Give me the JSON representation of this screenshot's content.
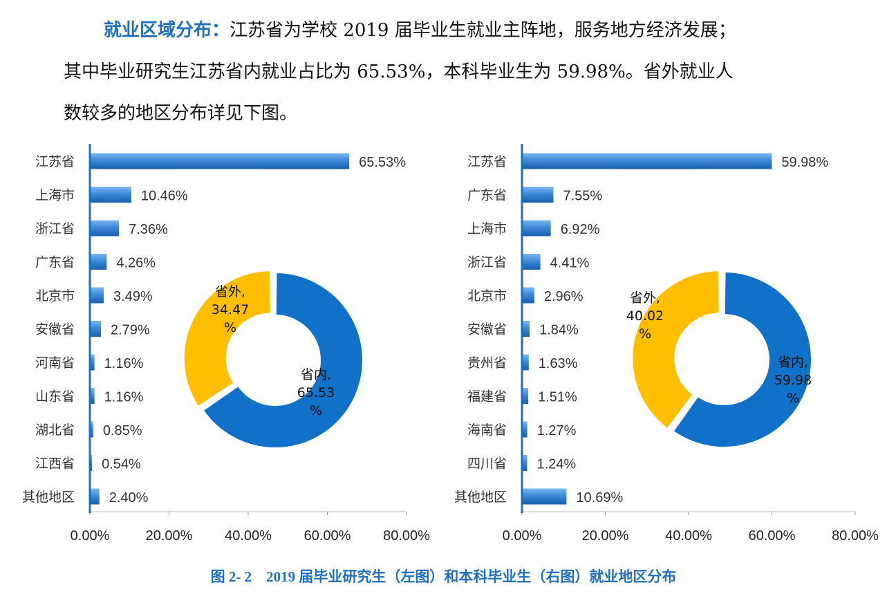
{
  "paragraph": {
    "highlight": "就业区域分布：",
    "line1": "江苏省为学校 2019 届毕业生就业主阵地，服务地方经济发展；",
    "line2": "其中毕业研究生江苏省内就业占比为 65.53%，本科毕业生为 59.98%。省外就业人",
    "line3": "数较多的地区分布详见下图。"
  },
  "caption": "图 2- 2　2019 届毕业研究生（左图）和本科毕业生（右图）就业地区分布",
  "colors": {
    "bar": "#2f7fd0",
    "axis": "#1f6fc0",
    "donut_in": "#1170c8",
    "donut_out": "#ffbf00",
    "caption": "#1f6fc0"
  },
  "chart_data": [
    {
      "type": "bar",
      "orientation": "horizontal",
      "categories": [
        "江苏省",
        "上海市",
        "浙江省",
        "广东省",
        "北京市",
        "安徽省",
        "河南省",
        "山东省",
        "湖北省",
        "江西省",
        "其他地区"
      ],
      "values": [
        65.53,
        10.46,
        7.36,
        4.26,
        3.49,
        2.79,
        1.16,
        1.16,
        0.85,
        0.54,
        2.4
      ],
      "value_labels": [
        "65.53%",
        "10.46%",
        "7.36%",
        "4.26%",
        "3.49%",
        "2.79%",
        "1.16%",
        "1.16%",
        "0.85%",
        "0.54%",
        "2.40%"
      ],
      "xlim": [
        0,
        80
      ],
      "xticks": [
        "0.00%",
        "20.00%",
        "40.00%",
        "60.00%",
        "80.00%"
      ],
      "inset": {
        "type": "pie",
        "donut": true,
        "slices": [
          {
            "name": "省内",
            "value": 65.53,
            "label": [
              "省内,",
              "65.53",
              "%"
            ]
          },
          {
            "name": "省外",
            "value": 34.47,
            "label": [
              "省外,",
              "34.47",
              "%"
            ]
          }
        ]
      }
    },
    {
      "type": "bar",
      "orientation": "horizontal",
      "categories": [
        "江苏省",
        "广东省",
        "上海市",
        "浙江省",
        "北京市",
        "安徽省",
        "贵州省",
        "福建省",
        "海南省",
        "四川省",
        "其他地区"
      ],
      "values": [
        59.98,
        7.55,
        6.92,
        4.41,
        2.96,
        1.84,
        1.63,
        1.51,
        1.27,
        1.24,
        10.69
      ],
      "value_labels": [
        "59.98%",
        "7.55%",
        "6.92%",
        "4.41%",
        "2.96%",
        "1.84%",
        "1.63%",
        "1.51%",
        "1.27%",
        "1.24%",
        "10.69%"
      ],
      "xlim": [
        0,
        80
      ],
      "xticks": [
        "0.00%",
        "20.00%",
        "40.00%",
        "60.00%",
        "80.00%"
      ],
      "inset": {
        "type": "pie",
        "donut": true,
        "slices": [
          {
            "name": "省内",
            "value": 59.98,
            "label": [
              "省内,",
              "59.98",
              "%"
            ]
          },
          {
            "name": "省外",
            "value": 40.02,
            "label": [
              "省外,",
              "40.02",
              "%"
            ]
          }
        ]
      }
    }
  ]
}
